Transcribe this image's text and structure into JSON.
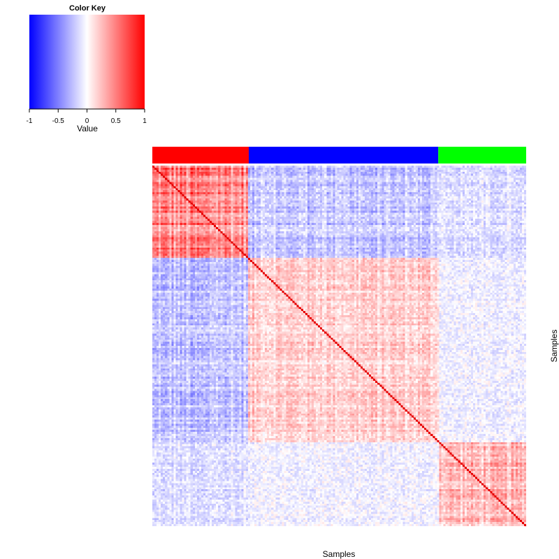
{
  "chart_data": {
    "type": "heatmap",
    "title": "",
    "xlabel": "Samples",
    "ylabel": "Samples",
    "value_range": [
      -1,
      1
    ],
    "diagonal_value": 1,
    "groups": [
      {
        "name": "red",
        "color": "#ff0000",
        "fraction": 0.258
      },
      {
        "name": "blue",
        "color": "#0000ff",
        "fraction": 0.507
      },
      {
        "name": "green",
        "color": "#00ff00",
        "fraction": 0.235
      }
    ],
    "block_correlations": [
      [
        0.45,
        -0.22,
        -0.12
      ],
      [
        -0.22,
        0.18,
        -0.05
      ],
      [
        -0.12,
        -0.05,
        0.25
      ]
    ],
    "color_key": {
      "title": "Color Key",
      "axis_label": "Value",
      "ticks": [
        -1,
        -0.5,
        0,
        0.5,
        1
      ],
      "tick_labels": [
        "-1",
        "-0.5",
        "0",
        "0.5",
        "1"
      ],
      "low_color": "#0000ff",
      "mid_color": "#ffffff",
      "high_color": "#ff0000"
    }
  }
}
